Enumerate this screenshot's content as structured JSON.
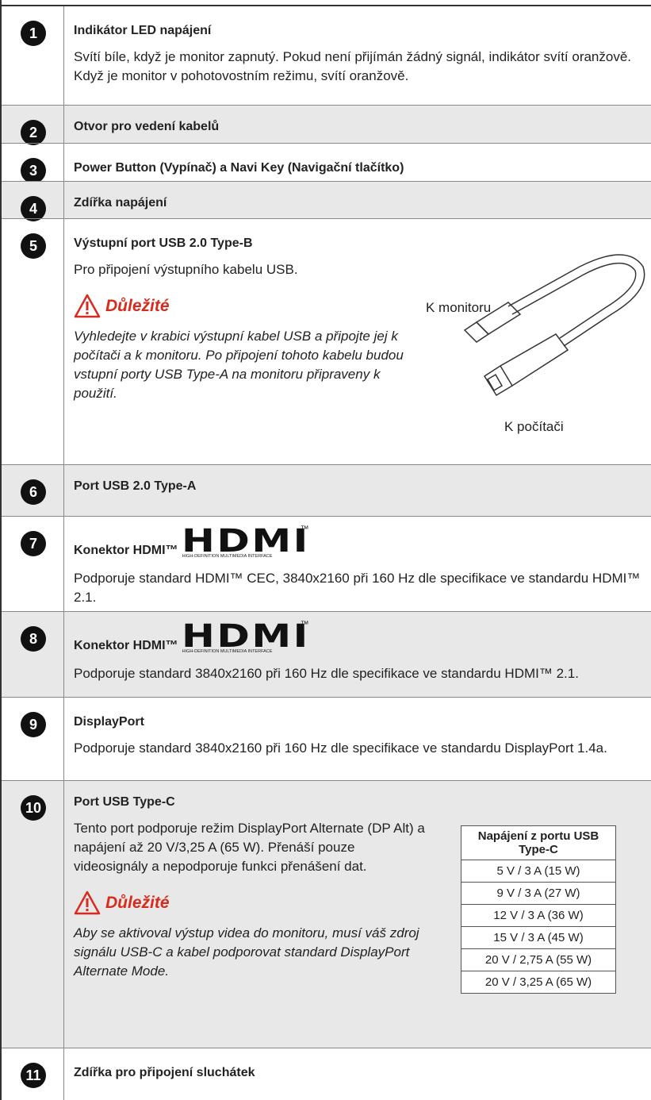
{
  "rows": [
    {
      "number": "1",
      "title": "Indikátor LED napájení",
      "text": "Svítí bíle, když je monitor zapnutý. Pokud není přijímán žádný signál, indikátor svítí oranžově. Když je monitor v pohotovostním režimu, svítí oranžově."
    },
    {
      "number": "2",
      "title": "Otvor pro vedení kabelů"
    },
    {
      "number": "3",
      "title": "Power Button (Vypínač) a Navi Key (Navigační tlačítko)"
    },
    {
      "number": "4",
      "title": "Zdířka napájení"
    },
    {
      "number": "5",
      "title": "Výstupní port USB 2.0 Type-B",
      "text": "Pro připojení výstupního kabelu USB.",
      "important": {
        "heading": "Důležité",
        "text": "Vyhledejte v krabici výstupní kabel USB a připojte jej k počítači a k monitoru. Po připojení tohoto kabelu budou vstupní porty USB Type-A na monitoru připraveny k použití."
      },
      "figure_labels": [
        "K monitoru",
        "K počítači"
      ]
    },
    {
      "number": "6",
      "title": "Port USB 2.0 Type-A"
    },
    {
      "number": "7",
      "title": "Konektor HDMI™",
      "logo": {
        "mark": "HDMI",
        "tm": "™",
        "tagline": "HIGH-DEFINITION MULTIMEDIA INTERFACE"
      },
      "text": "Podporuje standard HDMI™ CEC, 3840x2160 při 160 Hz dle specifikace ve standardu HDMI™ 2.1."
    },
    {
      "number": "8",
      "title": "Konektor HDMI™",
      "logo": {
        "mark": "HDMI",
        "tm": "™",
        "tagline": "HIGH-DEFINITION MULTIMEDIA INTERFACE"
      },
      "text": "Podporuje standard 3840x2160 při 160 Hz dle specifikace ve standardu HDMI™ 2.1."
    },
    {
      "number": "9",
      "title": "DisplayPort",
      "text": "Podporuje standard 3840x2160 při 160 Hz dle specifikace ve standardu DisplayPort 1.4a."
    },
    {
      "number": "10",
      "title": "Port USB Type-C",
      "text": "Tento port podporuje režim DisplayPort Alternate (DP Alt) a napájení až 20 V/3,25 A (65 W). Přenáší pouze videosignály a nepodporuje funkci přenášení dat.",
      "important": {
        "heading": "Důležité",
        "text": "Aby se aktivoval výstup videa do monitoru, musí váš zdroj signálu USB-C a kabel podporovat standard DisplayPort Alternate Mode."
      },
      "table": {
        "header": "Napájení z portu USB Type-C",
        "rows": [
          "5 V / 3 A (15 W)",
          "9 V / 3 A (27 W)",
          "12 V / 3 A (36 W)",
          "15 V / 3 A (45 W)",
          "20 V / 2,75 A (55 W)",
          "20 V / 3,25 A (65 W)"
        ]
      }
    },
    {
      "number": "11",
      "title": "Zdířka pro připojení sluchátek"
    }
  ]
}
